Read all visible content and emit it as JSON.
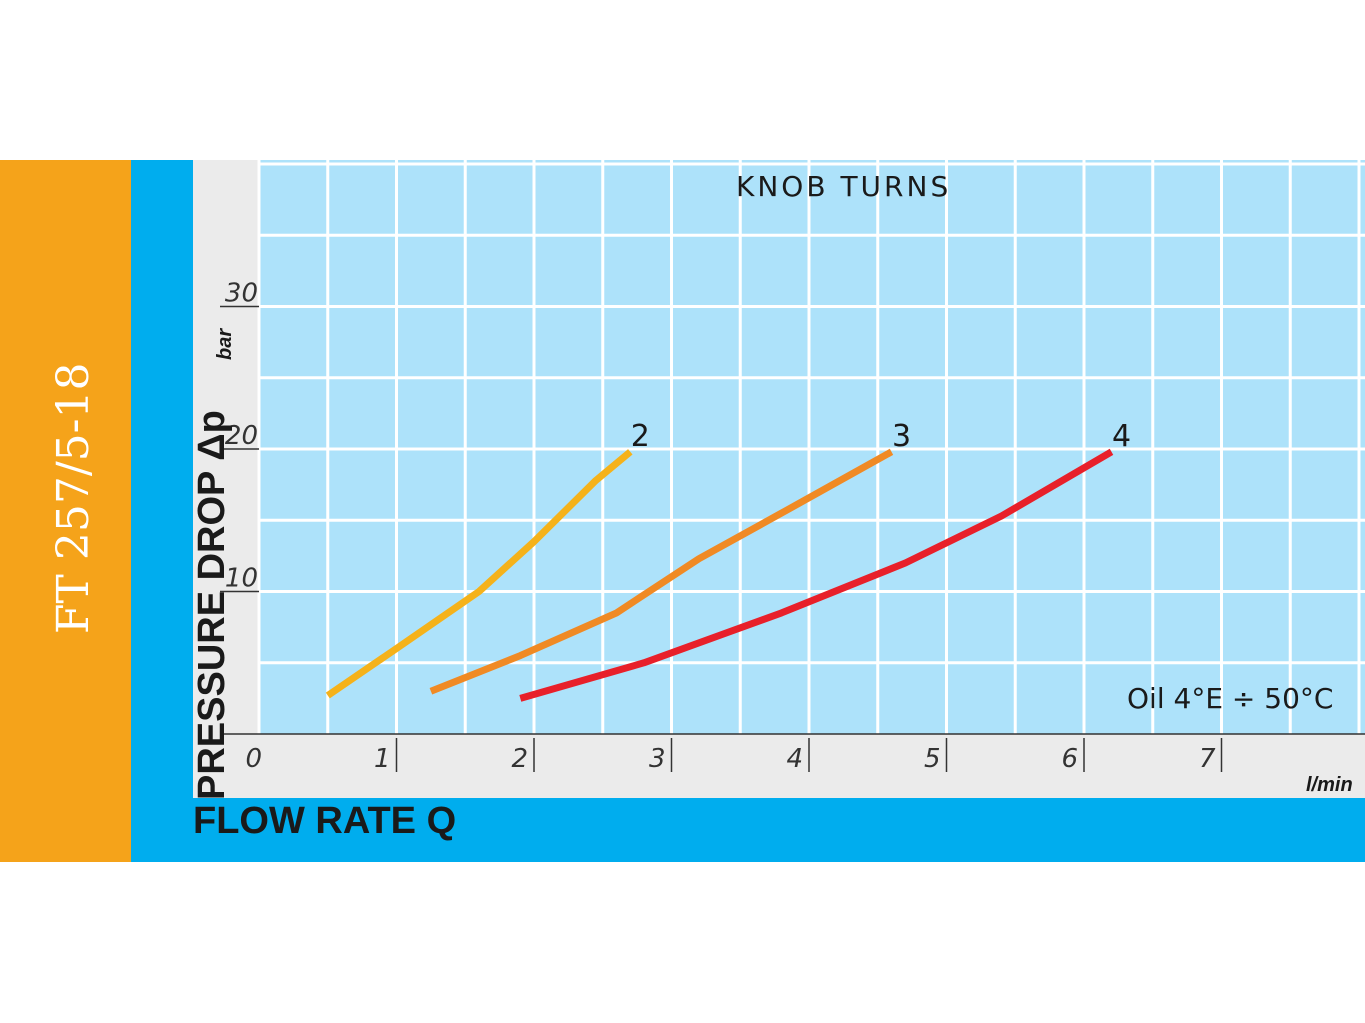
{
  "side_tab": {
    "title": "FT 257/5-18",
    "color": "#f5a31a"
  },
  "frame_color": "#00adee",
  "chart_data": {
    "type": "line",
    "title": "KNOB TURNS",
    "xlabel": "FLOW RATE Q",
    "ylabel": "PRESSURE DROP Δp",
    "xunit": "l/min",
    "yunit": "bar",
    "xlim": [
      0,
      8.0
    ],
    "ylim": [
      0,
      40
    ],
    "xticks": [
      0,
      1,
      2,
      3,
      4,
      5,
      6,
      7
    ],
    "yticks": [
      10,
      20,
      30
    ],
    "grid": true,
    "annotation": "Oil 4°E ÷ 50°C",
    "series": [
      {
        "name": "2",
        "color": "#f5b21a",
        "x": [
          0.5,
          1.0,
          1.6,
          2.0,
          2.45,
          2.7
        ],
        "y": [
          2.7,
          6.0,
          10.0,
          13.5,
          17.8,
          19.8
        ]
      },
      {
        "name": "3",
        "color": "#f08a24",
        "x": [
          1.25,
          1.9,
          2.6,
          3.2,
          3.8,
          4.6
        ],
        "y": [
          3.0,
          5.5,
          8.5,
          12.3,
          15.5,
          19.8
        ]
      },
      {
        "name": "4",
        "color": "#e8202a",
        "x": [
          1.9,
          2.8,
          3.8,
          4.7,
          5.4,
          6.2
        ],
        "y": [
          2.5,
          5.0,
          8.5,
          12.0,
          15.3,
          19.8
        ]
      }
    ]
  }
}
